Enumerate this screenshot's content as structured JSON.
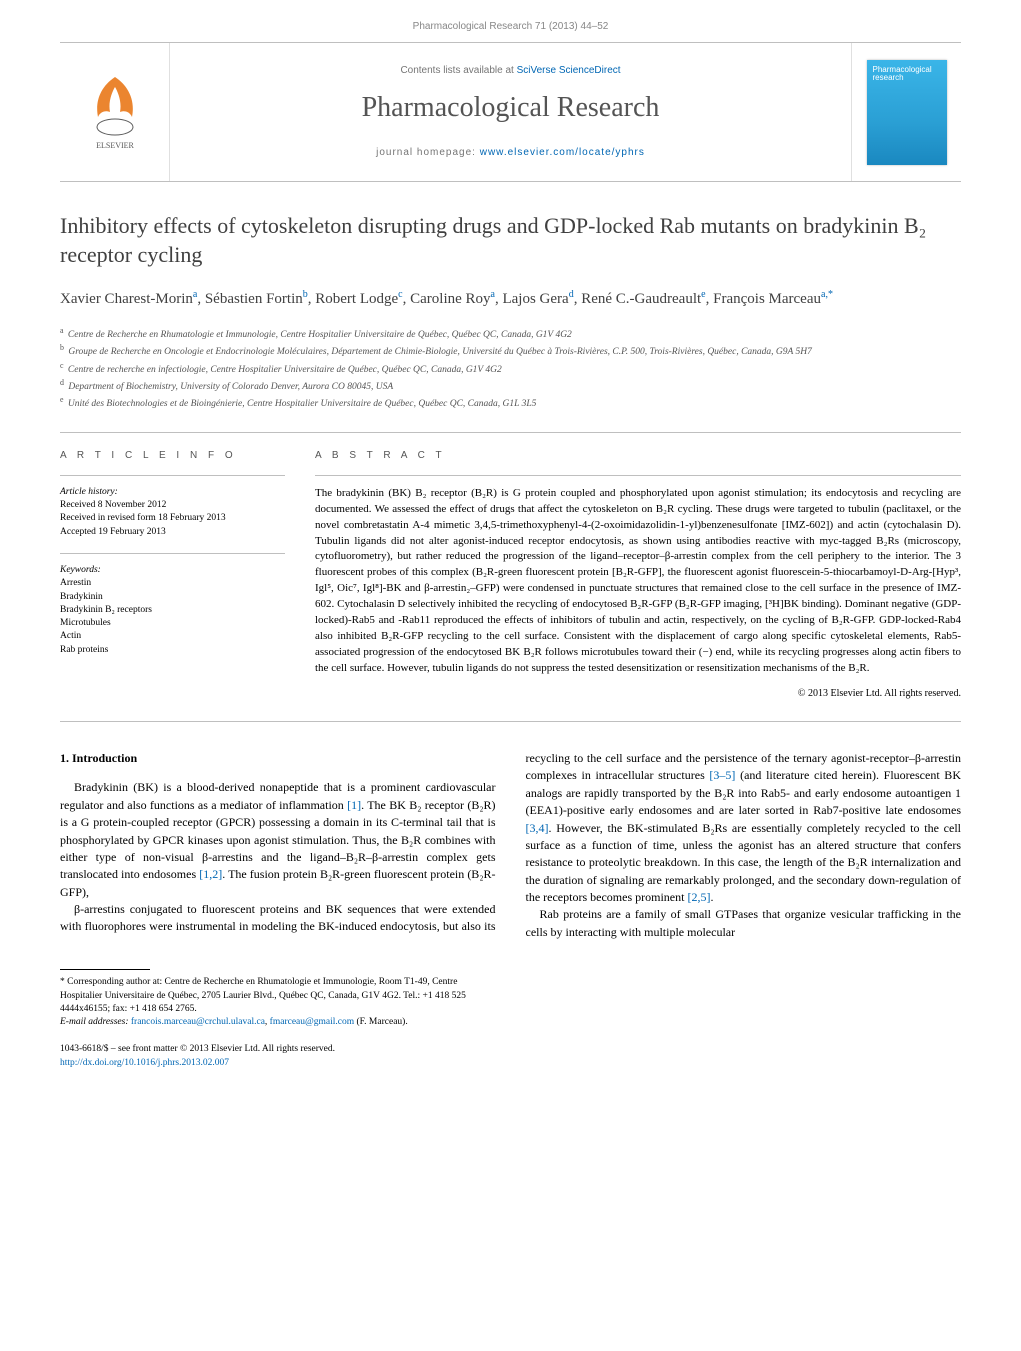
{
  "header": {
    "citation": "Pharmacological Research 71 (2013) 44–52",
    "contents_prefix": "Contents lists available at ",
    "contents_link": "SciVerse ScienceDirect",
    "journal_name": "Pharmacological Research",
    "homepage_prefix": "journal homepage: ",
    "homepage_link": "www.elsevier.com/locate/yphrs",
    "cover_text_1": "Pharmacological",
    "cover_text_2": "research"
  },
  "article": {
    "title": "Inhibitory effects of cytoskeleton disrupting drugs and GDP-locked Rab mutants on bradykinin B₂ receptor cycling",
    "authors_html": "Xavier Charest-Morin<sup>a</sup>, Sébastien Fortin<sup>b</sup>, Robert Lodge<sup>c</sup>, Caroline Roy<sup>a</sup>, Lajos Gera<sup>d</sup>, René C.-Gaudreault<sup>e</sup>, François Marceau<sup>a,*</sup>",
    "affiliations": [
      {
        "sup": "a",
        "text": "Centre de Recherche en Rhumatologie et Immunologie, Centre Hospitalier Universitaire de Québec, Québec QC, Canada, G1V 4G2"
      },
      {
        "sup": "b",
        "text": "Groupe de Recherche en Oncologie et Endocrinologie Moléculaires, Département de Chimie-Biologie, Université du Québec à Trois-Rivières, C.P. 500, Trois-Rivières, Québec, Canada, G9A 5H7"
      },
      {
        "sup": "c",
        "text": "Centre de recherche en infectiologie, Centre Hospitalier Universitaire de Québec, Québec QC, Canada, G1V 4G2"
      },
      {
        "sup": "d",
        "text": "Department of Biochemistry, University of Colorado Denver, Aurora CO 80045, USA"
      },
      {
        "sup": "e",
        "text": "Unité des Biotechnologies et de Bioingénierie, Centre Hospitalier Universitaire de Québec, Québec QC, Canada, G1L 3L5"
      }
    ]
  },
  "info": {
    "heading": "A R T I C L E   I N F O",
    "history_label": "Article history:",
    "history": [
      "Received 8 November 2012",
      "Received in revised form 18 February 2013",
      "Accepted 19 February 2013"
    ],
    "keywords_label": "Keywords:",
    "keywords": [
      "Arrestin",
      "Bradykinin",
      "Bradykinin B₂ receptors",
      "Microtubules",
      "Actin",
      "Rab proteins"
    ]
  },
  "abstract": {
    "heading": "A B S T R A C T",
    "text": "The bradykinin (BK) B₂ receptor (B₂R) is G protein coupled and phosphorylated upon agonist stimulation; its endocytosis and recycling are documented. We assessed the effect of drugs that affect the cytoskeleton on B₂R cycling. These drugs were targeted to tubulin (paclitaxel, or the novel combretastatin A-4 mimetic 3,4,5-trimethoxyphenyl-4-(2-oxoimidazolidin-1-yl)benzenesulfonate [IMZ-602]) and actin (cytochalasin D). Tubulin ligands did not alter agonist-induced receptor endocytosis, as shown using antibodies reactive with myc-tagged B₂Rs (microscopy, cytofluorometry), but rather reduced the progression of the ligand–receptor–β-arrestin complex from the cell periphery to the interior. The 3 fluorescent probes of this complex (B₂R-green fluorescent protein [B₂R-GFP], the fluorescent agonist fluorescein-5-thiocarbamoyl-D-Arg-[Hyp³, Igl⁵, Oic⁷, Igl⁸]-BK and β-arrestin₂–GFP) were condensed in punctuate structures that remained close to the cell surface in the presence of IMZ-602. Cytochalasin D selectively inhibited the recycling of endocytosed B₂R-GFP (B₂R-GFP imaging, [³H]BK binding). Dominant negative (GDP-locked)-Rab5 and -Rab11 reproduced the effects of inhibitors of tubulin and actin, respectively, on the cycling of B₂R-GFP. GDP-locked-Rab4 also inhibited B₂R-GFP recycling to the cell surface. Consistent with the displacement of cargo along specific cytoskeletal elements, Rab5-associated progression of the endocytosed BK B₂R follows microtubules toward their (−) end, while its recycling progresses along actin fibers to the cell surface. However, tubulin ligands do not suppress the tested desensitization or resensitization mechanisms of the B₂R.",
    "copyright": "© 2013 Elsevier Ltd. All rights reserved."
  },
  "body": {
    "section_heading": "1. Introduction",
    "para1": "Bradykinin (BK) is a blood-derived nonapeptide that is a prominent cardiovascular regulator and also functions as a mediator of inflammation [1]. The BK B₂ receptor (B₂R) is a G protein-coupled receptor (GPCR) possessing a domain in its C-terminal tail that is phosphorylated by GPCR kinases upon agonist stimulation. Thus, the B₂R combines with either type of non-visual β-arrestins and the ligand–B₂R–β-arrestin complex gets translocated into endosomes [1,2]. The fusion protein B₂R-green fluorescent protein (B₂R-GFP),",
    "para2": "β-arrestins conjugated to fluorescent proteins and BK sequences that were extended with fluorophores were instrumental in modeling the BK-induced endocytosis, but also its recycling to the cell surface and the persistence of the ternary agonist-receptor–β-arrestin complexes in intracellular structures [3–5] (and literature cited herein). Fluorescent BK analogs are rapidly transported by the B₂R into Rab5- and early endosome autoantigen 1 (EEA1)-positive early endosomes and are later sorted in Rab7-positive late endosomes [3,4]. However, the BK-stimulated B₂Rs are essentially completely recycled to the cell surface as a function of time, unless the agonist has an altered structure that confers resistance to proteolytic breakdown. In this case, the length of the B₂R internalization and the duration of signaling are remarkably prolonged, and the secondary down-regulation of the receptors becomes prominent [2,5].",
    "para3": "Rab proteins are a family of small GTPases that organize vesicular trafficking in the cells by interacting with multiple molecular"
  },
  "footnote": {
    "corresponding": "* Corresponding author at: Centre de Recherche en Rhumatologie et Immunologie, Room T1-49, Centre Hospitalier Universitaire de Québec, 2705 Laurier Blvd., Québec QC, Canada, G1V 4G2. Tel.: +1 418 525 4444x46155; fax: +1 418 654 2765.",
    "email_label": "E-mail addresses: ",
    "email1": "francois.marceau@crchul.ulaval.ca",
    "email_sep": ", ",
    "email2": "fmarceau@gmail.com",
    "email_name": "(F. Marceau)."
  },
  "doi": {
    "issn_line": "1043-6618/$ – see front matter © 2013 Elsevier Ltd. All rights reserved.",
    "doi_link": "http://dx.doi.org/10.1016/j.phrs.2013.02.007"
  },
  "colors": {
    "link": "#0066b3",
    "text_gray": "#545454",
    "border": "#bfbfbf",
    "cover_gradient_top": "#3ab5e8",
    "cover_gradient_bottom": "#1a88c0"
  }
}
